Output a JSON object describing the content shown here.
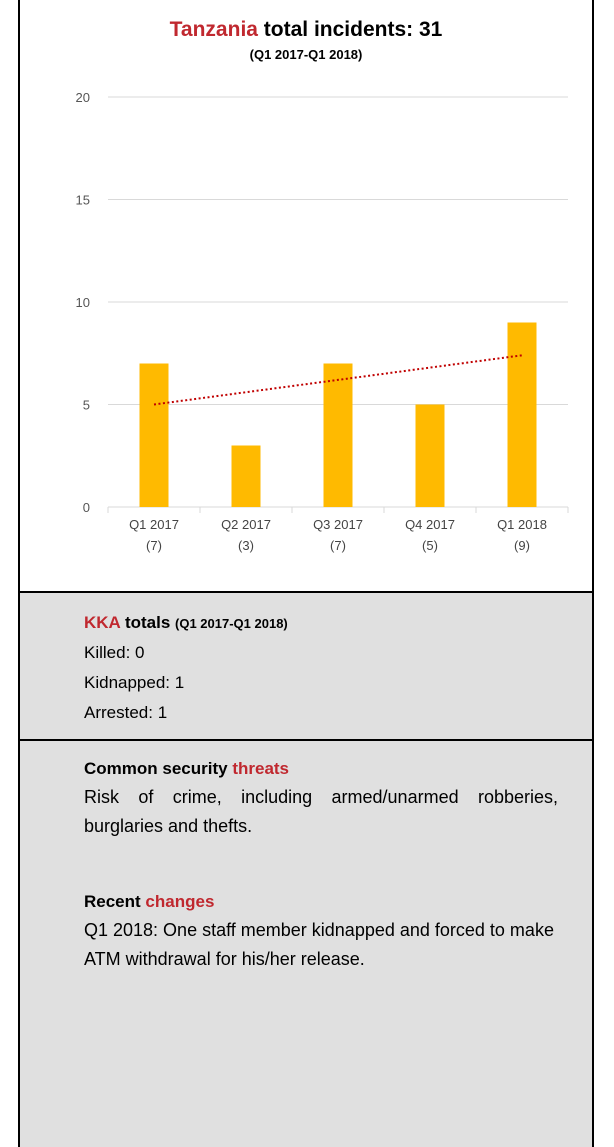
{
  "header": {
    "country": "Tanzania",
    "title_rest": "total incidents: 31",
    "subtitle": "(Q1 2017-Q1 2018)"
  },
  "chart_data": {
    "type": "bar",
    "categories": [
      "Q1 2017",
      "Q2 2017",
      "Q3 2017",
      "Q4 2017",
      "Q1 2018"
    ],
    "category_counts": [
      "(7)",
      "(3)",
      "(7)",
      "(5)",
      "(9)"
    ],
    "values": [
      7,
      3,
      7,
      5,
      9
    ],
    "ylim": [
      0,
      20
    ],
    "yticks": [
      0,
      5,
      10,
      15,
      20
    ],
    "trendline": {
      "style": "dotted",
      "color": "#c00000",
      "start": 5.0,
      "end": 7.4
    },
    "bar_color": "#ffba00",
    "grid": true,
    "xlabel": "",
    "ylabel": ""
  },
  "kka": {
    "heading_red": "KKA",
    "heading_rest": "totals",
    "heading_period": "(Q1 2017-Q1 2018)",
    "killed": "Killed: 0",
    "kidnapped": "Kidnapped: 1",
    "arrested": "Arrested: 1"
  },
  "threats": {
    "heading_black": "Common security",
    "heading_red": "threats",
    "text": "Risk of crime, including armed/unarmed robberies, burglaries and thefts."
  },
  "changes": {
    "heading_black": "Recent",
    "heading_red": "changes",
    "text": "Q1 2018: One staff member kidnapped and forced to make ATM withdrawal for his/her release."
  },
  "colors": {
    "accent_red": "#c0282f",
    "panel_gray": "#e0e0e0"
  }
}
